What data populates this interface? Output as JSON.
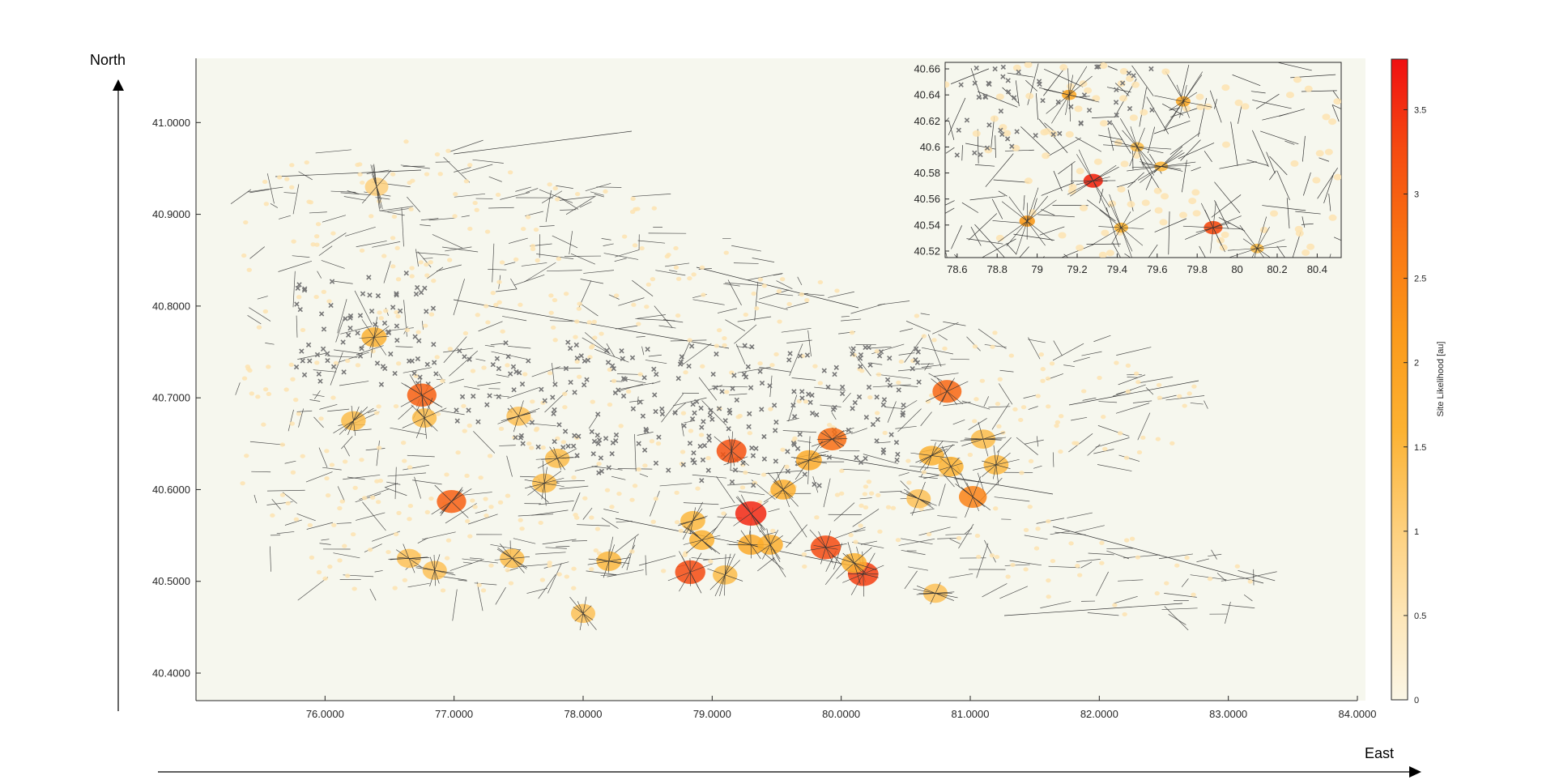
{
  "chart_data": [
    {
      "type": "scatter",
      "panel": "main",
      "x_ticks": [
        "76.0000",
        "77.0000",
        "78.0000",
        "79.0000",
        "80.0000",
        "81.0000",
        "82.0000",
        "83.0000",
        "84.0000"
      ],
      "y_ticks": [
        "41.0000",
        "40.9000",
        "40.8000",
        "40.7000",
        "40.6000",
        "40.5000",
        "40.4000"
      ],
      "xlim": [
        75.0,
        84.0
      ],
      "ylim": [
        40.37,
        41.07
      ],
      "grid": false,
      "background_color": "#f6f7ee",
      "hotspots": [
        {
          "x": 76.75,
          "y": 40.703,
          "likelihood": 3.0
        },
        {
          "x": 76.98,
          "y": 40.587,
          "likelihood": 3.0
        },
        {
          "x": 79.15,
          "y": 40.642,
          "likelihood": 3.2
        },
        {
          "x": 79.3,
          "y": 40.574,
          "likelihood": 3.6
        },
        {
          "x": 79.93,
          "y": 40.655,
          "likelihood": 2.8
        },
        {
          "x": 79.88,
          "y": 40.537,
          "likelihood": 3.3
        },
        {
          "x": 80.17,
          "y": 40.508,
          "likelihood": 3.4
        },
        {
          "x": 78.83,
          "y": 40.51,
          "likelihood": 3.3
        },
        {
          "x": 80.82,
          "y": 40.707,
          "likelihood": 2.9
        },
        {
          "x": 81.02,
          "y": 40.592,
          "likelihood": 2.5
        },
        {
          "x": 76.38,
          "y": 40.766,
          "likelihood": 1.6
        },
        {
          "x": 76.22,
          "y": 40.675,
          "likelihood": 1.4
        },
        {
          "x": 76.77,
          "y": 40.678,
          "likelihood": 1.4
        },
        {
          "x": 77.5,
          "y": 40.68,
          "likelihood": 1.3
        },
        {
          "x": 77.8,
          "y": 40.634,
          "likelihood": 1.4
        },
        {
          "x": 77.7,
          "y": 40.607,
          "likelihood": 1.4
        },
        {
          "x": 78.85,
          "y": 40.566,
          "likelihood": 1.5
        },
        {
          "x": 78.92,
          "y": 40.545,
          "likelihood": 1.6
        },
        {
          "x": 79.3,
          "y": 40.54,
          "likelihood": 1.8
        },
        {
          "x": 79.45,
          "y": 40.54,
          "likelihood": 1.7
        },
        {
          "x": 79.75,
          "y": 40.632,
          "likelihood": 1.8
        },
        {
          "x": 79.55,
          "y": 40.6,
          "likelihood": 1.7
        },
        {
          "x": 78.2,
          "y": 40.522,
          "likelihood": 1.5
        },
        {
          "x": 77.45,
          "y": 40.525,
          "likelihood": 1.4
        },
        {
          "x": 76.65,
          "y": 40.525,
          "likelihood": 1.3
        },
        {
          "x": 76.85,
          "y": 40.512,
          "likelihood": 1.3
        },
        {
          "x": 78.0,
          "y": 40.465,
          "likelihood": 1.3
        },
        {
          "x": 80.1,
          "y": 40.52,
          "likelihood": 1.6
        },
        {
          "x": 80.7,
          "y": 40.637,
          "likelihood": 1.6
        },
        {
          "x": 80.85,
          "y": 40.625,
          "likelihood": 1.6
        },
        {
          "x": 81.2,
          "y": 40.627,
          "likelihood": 1.5
        },
        {
          "x": 81.1,
          "y": 40.655,
          "likelihood": 1.4
        },
        {
          "x": 80.6,
          "y": 40.59,
          "likelihood": 1.3
        },
        {
          "x": 80.73,
          "y": 40.487,
          "likelihood": 1.3
        },
        {
          "x": 79.1,
          "y": 40.507,
          "likelihood": 1.4
        },
        {
          "x": 76.4,
          "y": 40.93,
          "likelihood": 1.0
        }
      ]
    },
    {
      "type": "scatter",
      "panel": "inset",
      "x_ticks": [
        "78.6",
        "78.8",
        "79",
        "79.2",
        "79.4",
        "79.6",
        "79.8",
        "80",
        "80.2",
        "80.4"
      ],
      "y_ticks": [
        "40.66",
        "40.64",
        "40.62",
        "40.6",
        "40.58",
        "40.56",
        "40.54",
        "40.52"
      ],
      "xlim": [
        78.54,
        80.52
      ],
      "ylim": [
        40.515,
        40.665
      ],
      "hotspots": [
        {
          "x": 79.28,
          "y": 40.574,
          "likelihood": 3.6
        },
        {
          "x": 79.88,
          "y": 40.538,
          "likelihood": 3.3
        },
        {
          "x": 78.95,
          "y": 40.543,
          "likelihood": 2.2
        },
        {
          "x": 79.16,
          "y": 40.64,
          "likelihood": 1.8
        },
        {
          "x": 79.73,
          "y": 40.635,
          "likelihood": 1.8
        },
        {
          "x": 79.42,
          "y": 40.538,
          "likelihood": 1.6
        },
        {
          "x": 79.62,
          "y": 40.585,
          "likelihood": 1.5
        },
        {
          "x": 79.5,
          "y": 40.6,
          "likelihood": 1.4
        },
        {
          "x": 80.1,
          "y": 40.522,
          "likelihood": 1.4
        }
      ]
    },
    {
      "type": "colorbar",
      "label": "Site Likelihood [au]",
      "ticks": [
        "3.5",
        "3",
        "2.5",
        "2",
        "1.5",
        "1",
        "0.5",
        "0"
      ],
      "range": [
        0,
        3.8
      ],
      "colors": [
        "#fbf6e6",
        "#fde3a6",
        "#fdc25a",
        "#fca622",
        "#fa7a14",
        "#f63c10",
        "#f10a10"
      ]
    }
  ],
  "labels": {
    "north": "North",
    "east": "East",
    "colorbar": "Site Likelihood [au]"
  }
}
